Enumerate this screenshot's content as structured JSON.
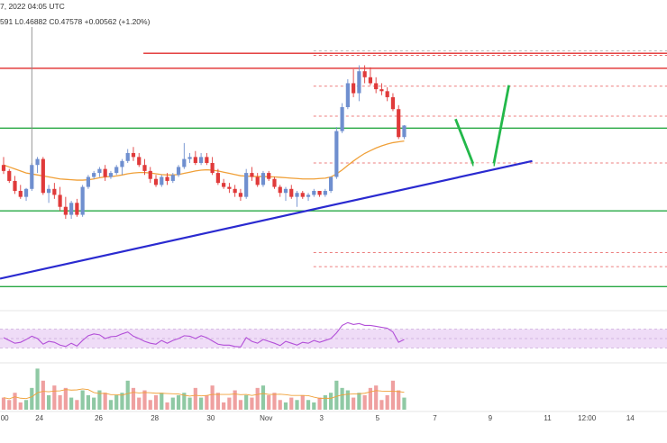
{
  "header": {
    "date_fragment": "7, 2022 04:05 UTC",
    "ohlc_fragment": "591",
    "low": "L0.46882",
    "close": "C0.47578",
    "change": "+0.00562 (+1.20%)"
  },
  "colors": {
    "bull": "#6f8fcf",
    "bear": "#e03a3a",
    "ma": "#f0a038",
    "resistance": "#e02b2b",
    "support": "#27a844",
    "trendline": "#2a2ad0",
    "projection": "#23b84a",
    "rsi": "#b24fd8",
    "rsi_band": "#efdcf7"
  },
  "chart_data": {
    "type": "candlestick",
    "price_ylim": [
      0.3852,
      0.5252
    ],
    "candles": [
      [
        0.456,
        0.46,
        0.4515,
        0.453
      ],
      [
        0.453,
        0.454,
        0.447,
        0.448
      ],
      [
        0.448,
        0.4505,
        0.4415,
        0.443
      ],
      [
        0.443,
        0.446,
        0.439,
        0.44
      ],
      [
        0.44,
        0.4445,
        0.438,
        0.444
      ],
      [
        0.444,
        0.457,
        0.443,
        0.456
      ],
      [
        0.456,
        0.46,
        0.452,
        0.459
      ],
      [
        0.459,
        0.46,
        0.441,
        0.442
      ],
      [
        0.442,
        0.446,
        0.437,
        0.444
      ],
      [
        0.444,
        0.447,
        0.439,
        0.441
      ],
      [
        0.441,
        0.445,
        0.433,
        0.435
      ],
      [
        0.435,
        0.44,
        0.429,
        0.431
      ],
      [
        0.431,
        0.438,
        0.429,
        0.437
      ],
      [
        0.437,
        0.439,
        0.43,
        0.431
      ],
      [
        0.431,
        0.446,
        0.43,
        0.445
      ],
      [
        0.445,
        0.451,
        0.444,
        0.45
      ],
      [
        0.45,
        0.453,
        0.449,
        0.452
      ],
      [
        0.452,
        0.455,
        0.45,
        0.454
      ],
      [
        0.454,
        0.456,
        0.448,
        0.45
      ],
      [
        0.45,
        0.453,
        0.449,
        0.452
      ],
      [
        0.452,
        0.456,
        0.451,
        0.455
      ],
      [
        0.455,
        0.459,
        0.451,
        0.458
      ],
      [
        0.458,
        0.464,
        0.457,
        0.462
      ],
      [
        0.462,
        0.465,
        0.458,
        0.46
      ],
      [
        0.46,
        0.462,
        0.455,
        0.456
      ],
      [
        0.456,
        0.459,
        0.451,
        0.453
      ],
      [
        0.453,
        0.455,
        0.447,
        0.449
      ],
      [
        0.449,
        0.451,
        0.445,
        0.446
      ],
      [
        0.446,
        0.451,
        0.445,
        0.45
      ],
      [
        0.45,
        0.452,
        0.446,
        0.448
      ],
      [
        0.448,
        0.452,
        0.447,
        0.451
      ],
      [
        0.451,
        0.456,
        0.45,
        0.455
      ],
      [
        0.455,
        0.467,
        0.454,
        0.459
      ],
      [
        0.459,
        0.462,
        0.457,
        0.46
      ],
      [
        0.46,
        0.463,
        0.456,
        0.457
      ],
      [
        0.457,
        0.462,
        0.456,
        0.46
      ],
      [
        0.46,
        0.462,
        0.456,
        0.457
      ],
      [
        0.457,
        0.46,
        0.451,
        0.452
      ],
      [
        0.452,
        0.454,
        0.446,
        0.447
      ],
      [
        0.447,
        0.449,
        0.444,
        0.445
      ],
      [
        0.445,
        0.447,
        0.442,
        0.444
      ],
      [
        0.444,
        0.446,
        0.44,
        0.442
      ],
      [
        0.442,
        0.444,
        0.438,
        0.44
      ],
      [
        0.44,
        0.454,
        0.439,
        0.452
      ],
      [
        0.452,
        0.455,
        0.448,
        0.45
      ],
      [
        0.45,
        0.452,
        0.445,
        0.446
      ],
      [
        0.446,
        0.453,
        0.445,
        0.452
      ],
      [
        0.452,
        0.453,
        0.448,
        0.449
      ],
      [
        0.449,
        0.45,
        0.444,
        0.445
      ],
      [
        0.445,
        0.446,
        0.44,
        0.442
      ],
      [
        0.442,
        0.445,
        0.438,
        0.444
      ],
      [
        0.444,
        0.446,
        0.439,
        0.44
      ],
      [
        0.44,
        0.443,
        0.435,
        0.442
      ],
      [
        0.442,
        0.443,
        0.439,
        0.44
      ],
      [
        0.44,
        0.442,
        0.438,
        0.441
      ],
      [
        0.441,
        0.444,
        0.44,
        0.443
      ],
      [
        0.443,
        0.443,
        0.44,
        0.441
      ],
      [
        0.441,
        0.444,
        0.44,
        0.443
      ],
      [
        0.443,
        0.45,
        0.442,
        0.45
      ],
      [
        0.45,
        0.475,
        0.449,
        0.473
      ],
      [
        0.473,
        0.487,
        0.472,
        0.485
      ],
      [
        0.485,
        0.499,
        0.484,
        0.497
      ],
      [
        0.497,
        0.504,
        0.49,
        0.492
      ],
      [
        0.492,
        0.506,
        0.488,
        0.503
      ],
      [
        0.503,
        0.506,
        0.497,
        0.5
      ],
      [
        0.5,
        0.505,
        0.496,
        0.497
      ],
      [
        0.497,
        0.5,
        0.492,
        0.494
      ],
      [
        0.494,
        0.497,
        0.491,
        0.493
      ],
      [
        0.493,
        0.495,
        0.488,
        0.49
      ],
      [
        0.49,
        0.492,
        0.483,
        0.484
      ],
      [
        0.484,
        0.486,
        0.469,
        0.47
      ],
      [
        0.47,
        0.476,
        0.469,
        0.4758
      ]
    ],
    "ma_values": [
      0.456,
      0.455,
      0.454,
      0.453,
      0.452,
      0.4515,
      0.451,
      0.4505,
      0.45,
      0.4495,
      0.449,
      0.4488,
      0.4486,
      0.4484,
      0.4484,
      0.4486,
      0.449,
      0.4496,
      0.45,
      0.4502,
      0.4505,
      0.451,
      0.4516,
      0.452,
      0.4522,
      0.4522,
      0.452,
      0.4516,
      0.4512,
      0.451,
      0.451,
      0.4512,
      0.4518,
      0.4524,
      0.453,
      0.4534,
      0.4536,
      0.4534,
      0.453,
      0.4524,
      0.4518,
      0.4512,
      0.4506,
      0.4504,
      0.4503,
      0.4502,
      0.4502,
      0.4501,
      0.45,
      0.4498,
      0.4496,
      0.4494,
      0.4492,
      0.449,
      0.449,
      0.449,
      0.4492,
      0.4494,
      0.45,
      0.4515,
      0.4535,
      0.4558,
      0.458,
      0.46,
      0.4618,
      0.4632,
      0.4645,
      0.4656,
      0.4665,
      0.4672,
      0.4676,
      0.468
    ],
    "hlines_solid": [
      {
        "price": 0.512,
        "color": "resistance",
        "from": 0.215
      },
      {
        "price": 0.5045,
        "color": "resistance",
        "from": 0.0
      },
      {
        "price": 0.4745,
        "color": "support",
        "from": 0.0
      },
      {
        "price": 0.433,
        "color": "support",
        "from": 0.0
      },
      {
        "price": 0.395,
        "color": "support",
        "from": 0.0
      }
    ],
    "hlines_dashed": [
      {
        "price": 0.5132,
        "color": "grey",
        "from": 0.47
      },
      {
        "price": 0.511,
        "color": "resistance",
        "from": 0.47
      },
      {
        "price": 0.4955,
        "color": "resistance",
        "from": 0.47
      },
      {
        "price": 0.4805,
        "color": "resistance",
        "from": 0.47
      },
      {
        "price": 0.457,
        "color": "resistance",
        "from": 0.47
      },
      {
        "price": 0.412,
        "color": "resistance",
        "from": 0.47
      },
      {
        "price": 0.405,
        "color": "resistance",
        "from": 0.47
      }
    ],
    "trendline": [
      [
        0,
        0.399
      ],
      [
        0.798,
        0.458
      ]
    ],
    "projection": [
      [
        0.683,
        0.479
      ],
      [
        0.71,
        0.456
      ],
      [
        0.74,
        0.456
      ],
      [
        0.763,
        0.496
      ]
    ],
    "rsi_values": [
      52,
      46,
      40,
      42,
      48,
      55,
      50,
      38,
      44,
      42,
      36,
      33,
      40,
      34,
      46,
      56,
      60,
      58,
      50,
      54,
      55,
      60,
      64,
      55,
      50,
      44,
      40,
      38,
      46,
      40,
      46,
      50,
      56,
      55,
      50,
      56,
      52,
      45,
      38,
      36,
      36,
      33,
      32,
      52,
      44,
      40,
      48,
      44,
      40,
      35,
      44,
      40,
      36,
      42,
      40,
      46,
      42,
      46,
      50,
      62,
      78,
      84,
      80,
      82,
      78,
      78,
      76,
      74,
      72,
      64,
      42,
      48
    ],
    "rsi_ylim": [
      0,
      100
    ],
    "rsi_band": [
      30,
      70
    ],
    "volumes": [
      5,
      4,
      7,
      3,
      4,
      9,
      17,
      12,
      6,
      10,
      6,
      9,
      5,
      4,
      8,
      6,
      5,
      8,
      7,
      4,
      6,
      7,
      12,
      9,
      5,
      8,
      4,
      6,
      7,
      3,
      5,
      6,
      7,
      5,
      9,
      5,
      6,
      10,
      7,
      3,
      5,
      8,
      4,
      6,
      5,
      9,
      10,
      6,
      7,
      4,
      3,
      5,
      4,
      6,
      4,
      3,
      5,
      6,
      7,
      12,
      9,
      8,
      5,
      7,
      6,
      9,
      10,
      4,
      6,
      12,
      8,
      5
    ],
    "volume_ylim": [
      0,
      19
    ],
    "xticks": [
      {
        "label": "00",
        "pos": 0.007
      },
      {
        "label": "24",
        "pos": 0.059
      },
      {
        "label": "26",
        "pos": 0.148
      },
      {
        "label": "28",
        "pos": 0.232
      },
      {
        "label": "30",
        "pos": 0.316
      },
      {
        "label": "Nov",
        "pos": 0.399
      },
      {
        "label": "3",
        "pos": 0.482
      },
      {
        "label": "5",
        "pos": 0.566
      },
      {
        "label": "7",
        "pos": 0.652
      },
      {
        "label": "9",
        "pos": 0.735
      },
      {
        "label": "11",
        "pos": 0.821
      },
      {
        "label": "12:00",
        "pos": 0.88
      },
      {
        "label": "14",
        "pos": 0.945
      }
    ]
  }
}
